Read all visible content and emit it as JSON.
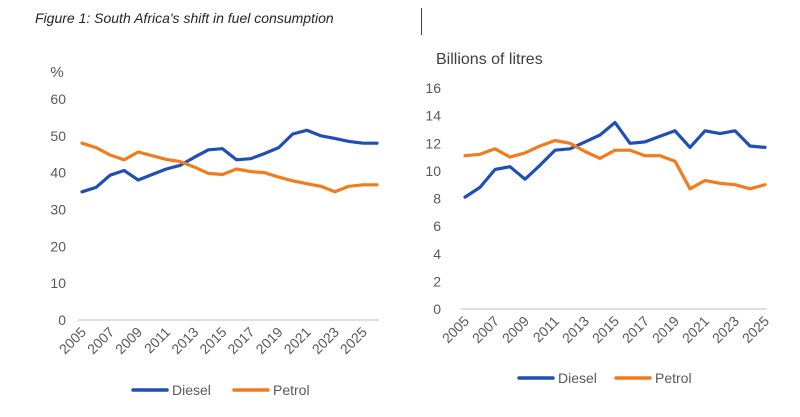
{
  "figure_title": "Figure 1: South Africa's shift in fuel consumption",
  "colors": {
    "diesel": "#1f4fb5",
    "petrol": "#f07c1e",
    "axis": "#bfbfbf",
    "text": "#595959"
  },
  "chart_data": [
    {
      "type": "line",
      "ylabel": "%",
      "ylim": [
        0,
        60
      ],
      "yticks": [
        "0",
        "10",
        "20",
        "30",
        "40",
        "50",
        "60"
      ],
      "x": [
        2005,
        2006,
        2007,
        2008,
        2009,
        2010,
        2011,
        2012,
        2013,
        2014,
        2015,
        2016,
        2017,
        2018,
        2019,
        2020,
        2021,
        2022,
        2023,
        2024,
        2025,
        2026
      ],
      "xticks": [
        "2005",
        "2007",
        "2009",
        "2011",
        "2013",
        "2015",
        "2017",
        "2019",
        "2021",
        "2023",
        "2025"
      ],
      "grid": false,
      "legend": "bottom",
      "series": [
        {
          "name": "Diesel",
          "values": [
            34.8,
            36.0,
            39.3,
            40.6,
            38.0,
            39.5,
            41.0,
            42.0,
            44.2,
            46.2,
            46.5,
            43.5,
            43.8,
            45.2,
            46.8,
            50.5,
            51.5,
            50.0,
            49.3,
            48.5,
            48.0,
            48.0
          ]
        },
        {
          "name": "Petrol",
          "values": [
            48.0,
            46.8,
            44.8,
            43.5,
            45.6,
            44.6,
            43.6,
            43.0,
            41.5,
            39.8,
            39.5,
            41.0,
            40.3,
            40.0,
            38.8,
            37.8,
            37.0,
            36.3,
            34.8,
            36.3,
            36.7,
            36.7
          ]
        }
      ]
    },
    {
      "type": "line",
      "ylabel": "Billions of litres",
      "ylim": [
        0,
        16
      ],
      "yticks": [
        "0",
        "2",
        "4",
        "6",
        "8",
        "10",
        "12",
        "14",
        "16"
      ],
      "x": [
        2005,
        2006,
        2007,
        2008,
        2009,
        2010,
        2011,
        2012,
        2013,
        2014,
        2015,
        2016,
        2017,
        2018,
        2019,
        2020,
        2021,
        2022,
        2023,
        2024,
        2025
      ],
      "xticks": [
        "2005",
        "2007",
        "2009",
        "2011",
        "2013",
        "2015",
        "2017",
        "2019",
        "2021",
        "2023",
        "2025"
      ],
      "grid": false,
      "legend": "bottom",
      "series": [
        {
          "name": "Diesel",
          "values": [
            8.1,
            8.8,
            10.1,
            10.3,
            9.4,
            10.4,
            11.5,
            11.6,
            12.1,
            12.6,
            13.5,
            12.0,
            12.1,
            12.5,
            12.9,
            11.7,
            12.9,
            12.7,
            12.9,
            11.8,
            11.7
          ]
        },
        {
          "name": "Petrol",
          "values": [
            11.1,
            11.2,
            11.6,
            11.0,
            11.3,
            11.8,
            12.2,
            12.0,
            11.4,
            10.9,
            11.5,
            11.5,
            11.1,
            11.1,
            10.7,
            8.7,
            9.3,
            9.1,
            9.0,
            8.7,
            9.0
          ]
        }
      ]
    }
  ]
}
